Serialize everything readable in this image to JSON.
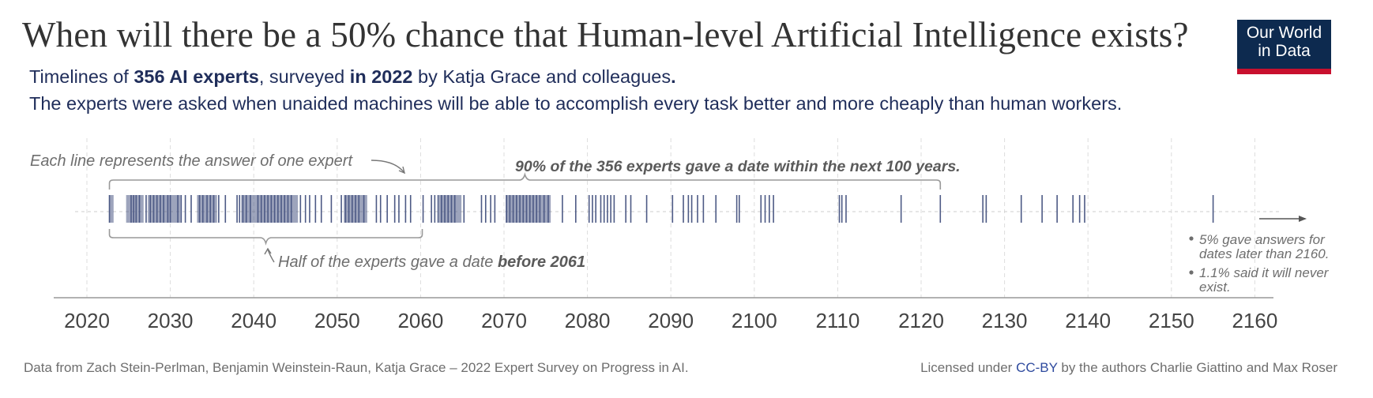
{
  "header": {
    "title": "When will there be a 50% chance that Human-level Artificial Intelligence exists?",
    "subtitle1": {
      "prefix": "Timelines of ",
      "bold1": "356 AI experts",
      "mid": ", surveyed ",
      "bold2": "in 2022",
      "suffix": " by Katja Grace and colleagues",
      "period": "."
    },
    "subtitle2": "The experts were asked when unaided machines will be able to accomplish every task better and more cheaply than human workers."
  },
  "logo": {
    "line1": "Our World",
    "line2": "in Data",
    "bg_color": "#0d2a4f",
    "accent_color": "#c8102e"
  },
  "chart_data": {
    "type": "scatter",
    "title": "When will there be a 50% chance that Human-level Artificial Intelligence exists?",
    "description": "Strip plot: each vertical line is one expert's answer (year)",
    "xlabel": "",
    "ylabel": "",
    "xlim": [
      2016,
      2166
    ],
    "ticks": [
      2020,
      2030,
      2040,
      2050,
      2060,
      2070,
      2080,
      2090,
      2100,
      2110,
      2120,
      2130,
      2140,
      2150,
      2160
    ],
    "grid": true,
    "line_color": "#4d5a85",
    "answers": [
      2022.7,
      2025.3,
      2025.6,
      2025.9,
      2026.3,
      2027.1,
      2027.6,
      2028,
      2028.4,
      2028.8,
      2029.2,
      2029.7,
      2030,
      2030.9,
      2031.3,
      2031.8,
      2032.5,
      2033.5,
      2033.9,
      2034.4,
      2034.8,
      2035.2,
      2035.8,
      2036.6,
      2038,
      2038.3,
      2038.7,
      2039.1,
      2039.6,
      2040.5,
      2040.9,
      2041.3,
      2041.7,
      2042.1,
      2042.5,
      2042.9,
      2043.3,
      2043.7,
      2044.1,
      2044.5,
      2045.6,
      2046.2,
      2046.7,
      2047.4,
      2048.1,
      2049.3,
      2050.5,
      2051,
      2051.4,
      2051.8,
      2052.2,
      2052.6,
      2053.2,
      2054.7,
      2055.2,
      2056,
      2056.9,
      2057.4,
      2058.2,
      2058.8,
      2060.3,
      2061.3,
      2061.7,
      2062.1,
      2062.5,
      2062.9,
      2063.3,
      2063.7,
      2064.1,
      2065.2,
      2067.3,
      2067.8,
      2068.4,
      2068.9,
      2070.3,
      2070.7,
      2071.1,
      2071.5,
      2071.9,
      2072.3,
      2072.7,
      2073.1,
      2073.5,
      2073.9,
      2074.3,
      2074.8,
      2075.3,
      2077,
      2078.6,
      2080.2,
      2080.6,
      2081,
      2081.6,
      2082,
      2082.4,
      2082.8,
      2083.2,
      2084.6,
      2085.2,
      2087.1,
      2090.2,
      2091.5,
      2092.1,
      2092.5,
      2093.2,
      2093.9,
      2095.4,
      2097.9,
      2098.2,
      2100.8,
      2101.3,
      2101.8,
      2102.3,
      2110.2,
      2110.5,
      2111,
      2117.6,
      2122.3,
      2127.4,
      2127.8,
      2132,
      2134.5,
      2136.3,
      2138.2,
      2139,
      2139.6,
      2155
    ],
    "dense_ranges": [
      [
        2022.7,
        2023.2
      ],
      [
        2024.7,
        2026.8
      ],
      [
        2027.3,
        2031.2
      ],
      [
        2033.2,
        2035.6
      ],
      [
        2038.5,
        2045.3
      ],
      [
        2050.8,
        2053.6
      ],
      [
        2062.2,
        2064.9
      ],
      [
        2070.2,
        2075.6
      ]
    ],
    "annotations": {
      "each_line": "Each line represents the answer of one expert",
      "ninety_pct": "90% of the 356 experts gave a date within the next 100 years.",
      "half_prefix": "Half of the experts gave a date ",
      "half_bold": "before 2061",
      "bullet1_line1": "5% gave answers for",
      "bullet1_line2": "dates later than 2160.",
      "bullet2_line1": "1.1% said it will never",
      "bullet2_line2": "exist."
    },
    "brackets": {
      "ninety_pct_range": [
        2022.7,
        2122.3
      ],
      "half_range": [
        2022.7,
        2060.2
      ]
    }
  },
  "footer": {
    "source": "Data from Zach Stein-Perlman, Benjamin Weinstein-Raun, Katja Grace – 2022 Expert Survey on Progress in AI.",
    "license_prefix": "Licensed under ",
    "license_link": "CC-BY",
    "license_suffix": " by the authors Charlie Giattino and Max Roser"
  }
}
